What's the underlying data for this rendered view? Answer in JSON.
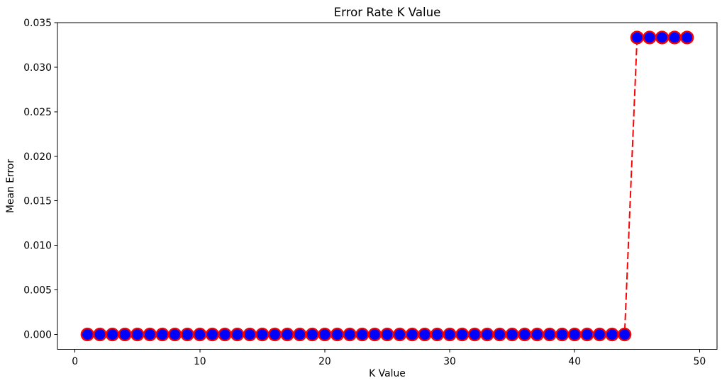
{
  "chart_data": {
    "type": "line",
    "title": "Error Rate K Value",
    "xlabel": "K Value",
    "ylabel": "Mean Error",
    "x": [
      1,
      2,
      3,
      4,
      5,
      6,
      7,
      8,
      9,
      10,
      11,
      12,
      13,
      14,
      15,
      16,
      17,
      18,
      19,
      20,
      21,
      22,
      23,
      24,
      25,
      26,
      27,
      28,
      29,
      30,
      31,
      32,
      33,
      34,
      35,
      36,
      37,
      38,
      39,
      40,
      41,
      42,
      43,
      44,
      45,
      46,
      47,
      48,
      49
    ],
    "y": [
      0,
      0,
      0,
      0,
      0,
      0,
      0,
      0,
      0,
      0,
      0,
      0,
      0,
      0,
      0,
      0,
      0,
      0,
      0,
      0,
      0,
      0,
      0,
      0,
      0,
      0,
      0,
      0,
      0,
      0,
      0,
      0,
      0,
      0,
      0,
      0,
      0,
      0,
      0,
      0,
      0,
      0,
      0,
      0,
      0.0333333,
      0.0333333,
      0.0333333,
      0.0333333,
      0.0333333
    ],
    "xlim": [
      -1.4,
      51.4
    ],
    "ylim": [
      -0.0016667,
      0.035
    ],
    "xticks": [
      0,
      10,
      20,
      30,
      40,
      50
    ],
    "xtick_labels": [
      "0",
      "10",
      "20",
      "30",
      "40",
      "50"
    ],
    "yticks": [
      0,
      0.005,
      0.01,
      0.015,
      0.02,
      0.025,
      0.03,
      0.035
    ],
    "ytick_labels": [
      "0.000",
      "0.005",
      "0.010",
      "0.015",
      "0.020",
      "0.025",
      "0.030",
      "0.035"
    ],
    "line_color": "#ff0000",
    "line_style": "dashed",
    "marker": "o",
    "marker_face_color": "#0000ff",
    "marker_edge_color": "#ff0000",
    "grid": false,
    "legend": "none"
  }
}
